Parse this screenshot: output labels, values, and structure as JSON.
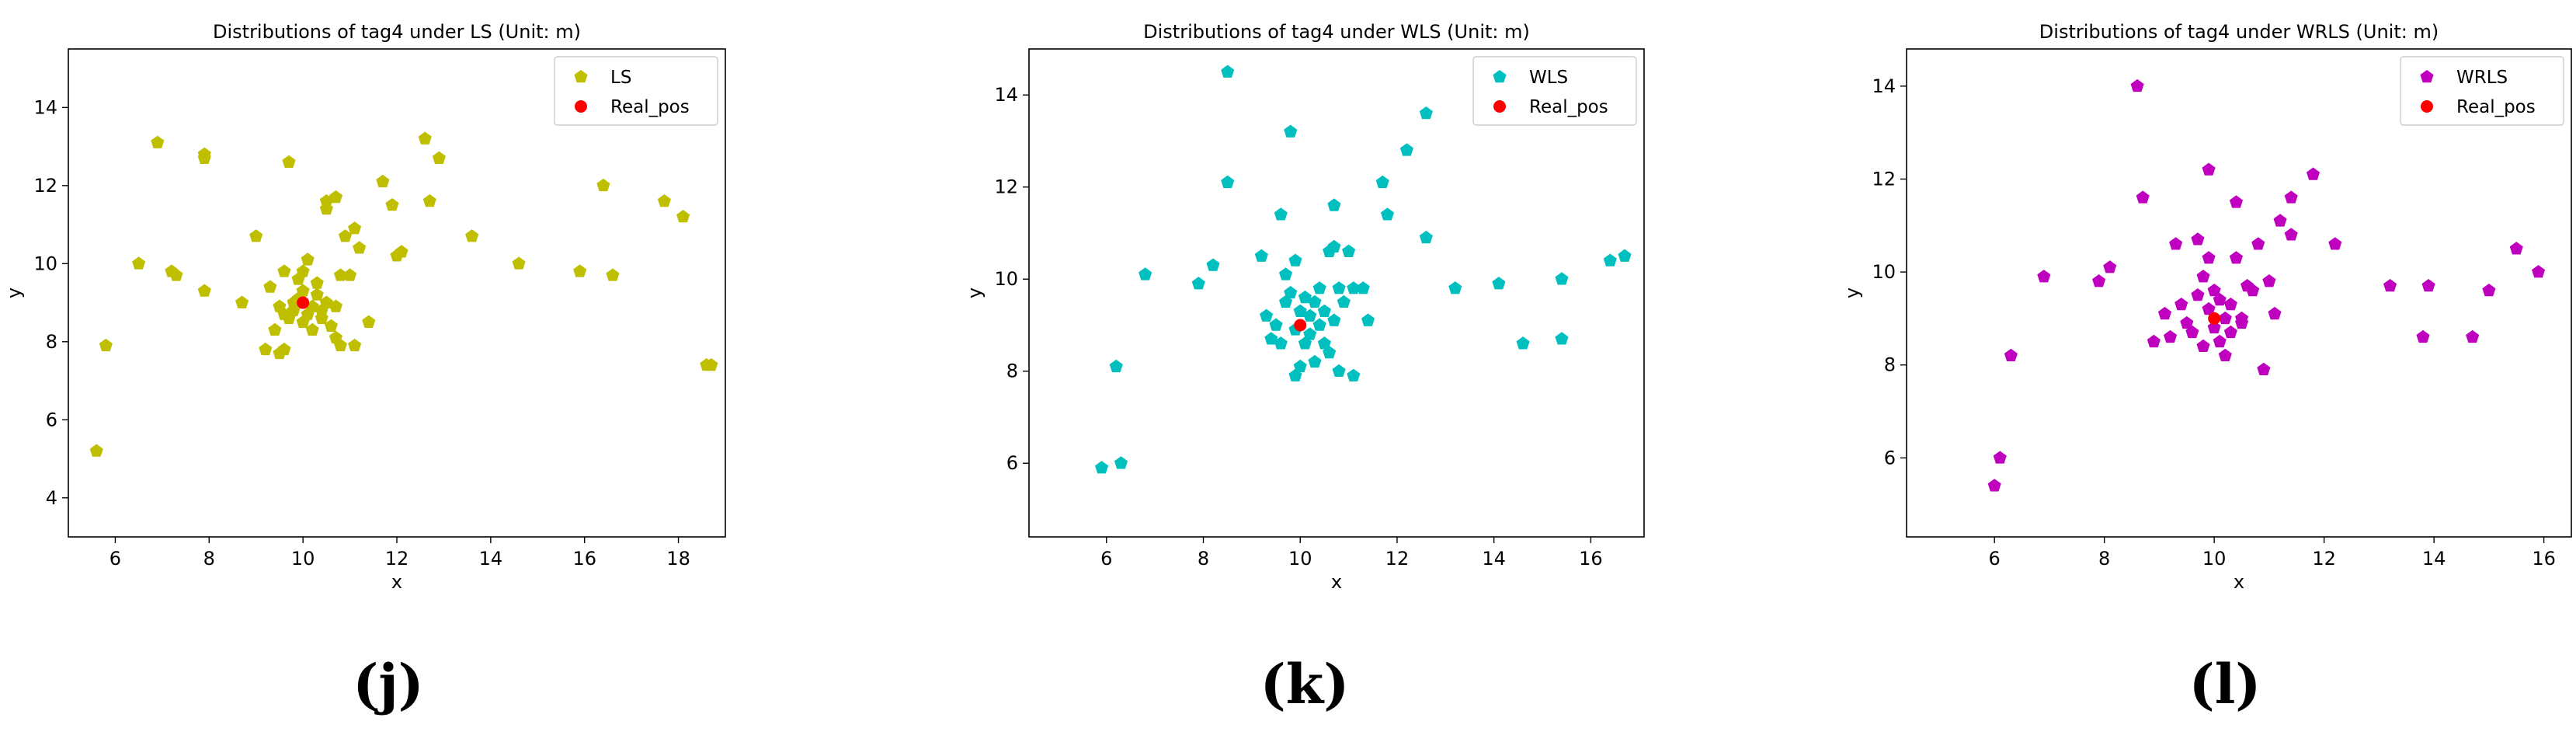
{
  "chart_data": [
    {
      "type": "scatter",
      "title": "Distributions of tag4 under LS (Unit: m)",
      "xlabel": "x",
      "ylabel": "y",
      "xlim": [
        5.0,
        19.0
      ],
      "ylim": [
        3.0,
        15.5
      ],
      "xticks": [
        6,
        8,
        10,
        12,
        14,
        16,
        18
      ],
      "yticks": [
        4,
        6,
        8,
        10,
        12,
        14
      ],
      "legend_position": "top-right",
      "caption": "(j)",
      "series": [
        {
          "name": "LS",
          "marker": "pentagon",
          "color": "#bfbf00",
          "points": [
            [
              5.6,
              5.2
            ],
            [
              5.8,
              7.9
            ],
            [
              6.5,
              10.0
            ],
            [
              6.9,
              13.1
            ],
            [
              7.2,
              9.8
            ],
            [
              7.3,
              9.7
            ],
            [
              7.9,
              12.8
            ],
            [
              7.9,
              9.3
            ],
            [
              7.9,
              12.7
            ],
            [
              8.7,
              9.0
            ],
            [
              9.0,
              10.7
            ],
            [
              9.2,
              7.8
            ],
            [
              9.3,
              9.4
            ],
            [
              9.4,
              8.3
            ],
            [
              9.5,
              7.7
            ],
            [
              9.5,
              8.9
            ],
            [
              9.6,
              8.7
            ],
            [
              9.6,
              9.8
            ],
            [
              9.6,
              7.8
            ],
            [
              9.7,
              12.6
            ],
            [
              9.7,
              8.6
            ],
            [
              9.8,
              9.0
            ],
            [
              9.8,
              8.8
            ],
            [
              9.9,
              9.1
            ],
            [
              9.9,
              9.6
            ],
            [
              10.0,
              9.3
            ],
            [
              10.0,
              8.5
            ],
            [
              10.0,
              9.8
            ],
            [
              10.1,
              8.7
            ],
            [
              10.1,
              10.1
            ],
            [
              10.2,
              8.3
            ],
            [
              10.2,
              8.9
            ],
            [
              10.3,
              9.5
            ],
            [
              10.3,
              9.2
            ],
            [
              10.4,
              8.6
            ],
            [
              10.4,
              8.8
            ],
            [
              10.5,
              9.0
            ],
            [
              10.5,
              11.4
            ],
            [
              10.5,
              11.6
            ],
            [
              10.6,
              8.4
            ],
            [
              10.7,
              8.9
            ],
            [
              10.7,
              11.7
            ],
            [
              10.7,
              8.1
            ],
            [
              10.8,
              7.9
            ],
            [
              10.8,
              9.7
            ],
            [
              10.9,
              10.7
            ],
            [
              11.0,
              9.7
            ],
            [
              11.1,
              10.9
            ],
            [
              11.1,
              7.9
            ],
            [
              11.2,
              10.4
            ],
            [
              11.4,
              8.5
            ],
            [
              11.7,
              12.1
            ],
            [
              11.9,
              11.5
            ],
            [
              12.0,
              10.2
            ],
            [
              12.1,
              10.3
            ],
            [
              12.6,
              13.2
            ],
            [
              12.7,
              11.6
            ],
            [
              12.9,
              12.7
            ],
            [
              13.6,
              10.7
            ],
            [
              14.6,
              10.0
            ],
            [
              15.9,
              9.8
            ],
            [
              16.4,
              12.0
            ],
            [
              16.6,
              9.7
            ],
            [
              17.7,
              11.6
            ],
            [
              18.1,
              11.2
            ],
            [
              18.6,
              7.4
            ],
            [
              18.7,
              7.4
            ]
          ]
        },
        {
          "name": "Real_pos",
          "marker": "circle",
          "color": "#ff0000",
          "points": [
            [
              10.0,
              9.0
            ]
          ]
        }
      ]
    },
    {
      "type": "scatter",
      "title": "Distributions of tag4 under WLS (Unit: m)",
      "xlabel": "x",
      "ylabel": "y",
      "xlim": [
        4.4,
        17.1
      ],
      "ylim": [
        4.4,
        15.0
      ],
      "xticks": [
        6,
        8,
        10,
        12,
        14,
        16
      ],
      "yticks": [
        6,
        8,
        10,
        12,
        14
      ],
      "legend_position": "top-right",
      "caption": "(k)",
      "series": [
        {
          "name": "WLS",
          "marker": "pentagon",
          "color": "#00bfbf",
          "points": [
            [
              5.9,
              5.9
            ],
            [
              6.2,
              8.1
            ],
            [
              6.3,
              6.0
            ],
            [
              6.8,
              10.1
            ],
            [
              7.9,
              9.9
            ],
            [
              8.2,
              10.3
            ],
            [
              8.5,
              14.5
            ],
            [
              8.5,
              12.1
            ],
            [
              9.2,
              10.5
            ],
            [
              9.3,
              9.2
            ],
            [
              9.4,
              8.7
            ],
            [
              9.5,
              9.0
            ],
            [
              9.6,
              11.4
            ],
            [
              9.6,
              8.6
            ],
            [
              9.7,
              9.5
            ],
            [
              9.7,
              10.1
            ],
            [
              9.8,
              13.2
            ],
            [
              9.8,
              9.7
            ],
            [
              9.9,
              7.9
            ],
            [
              9.9,
              10.4
            ],
            [
              9.9,
              8.9
            ],
            [
              10.0,
              9.3
            ],
            [
              10.0,
              8.1
            ],
            [
              10.1,
              9.6
            ],
            [
              10.1,
              8.6
            ],
            [
              10.2,
              9.2
            ],
            [
              10.2,
              8.8
            ],
            [
              10.3,
              9.5
            ],
            [
              10.3,
              8.2
            ],
            [
              10.4,
              9.0
            ],
            [
              10.4,
              9.8
            ],
            [
              10.5,
              8.6
            ],
            [
              10.5,
              9.3
            ],
            [
              10.6,
              10.6
            ],
            [
              10.6,
              8.4
            ],
            [
              10.7,
              11.6
            ],
            [
              10.7,
              9.1
            ],
            [
              10.7,
              10.7
            ],
            [
              10.8,
              8.0
            ],
            [
              10.8,
              9.8
            ],
            [
              10.9,
              9.5
            ],
            [
              11.0,
              10.6
            ],
            [
              11.1,
              7.9
            ],
            [
              11.1,
              9.8
            ],
            [
              11.3,
              9.8
            ],
            [
              11.4,
              9.1
            ],
            [
              11.7,
              12.1
            ],
            [
              11.8,
              11.4
            ],
            [
              12.2,
              12.8
            ],
            [
              12.6,
              13.6
            ],
            [
              12.6,
              10.9
            ],
            [
              13.2,
              9.8
            ],
            [
              14.1,
              9.9
            ],
            [
              14.6,
              8.6
            ],
            [
              15.4,
              8.7
            ],
            [
              15.4,
              10.0
            ],
            [
              16.4,
              10.4
            ],
            [
              16.7,
              10.5
            ]
          ]
        },
        {
          "name": "Real_pos",
          "marker": "circle",
          "color": "#ff0000",
          "points": [
            [
              10.0,
              9.0
            ]
          ]
        }
      ]
    },
    {
      "type": "scatter",
      "title": "Distributions of tag4 under WRLS (Unit: m)",
      "xlabel": "x",
      "ylabel": "y",
      "xlim": [
        4.4,
        16.5
      ],
      "ylim": [
        4.3,
        14.8
      ],
      "xticks": [
        6,
        8,
        10,
        12,
        14,
        16
      ],
      "yticks": [
        6,
        8,
        10,
        12,
        14
      ],
      "legend_position": "top-right",
      "caption": "(l)",
      "series": [
        {
          "name": "WRLS",
          "marker": "pentagon",
          "color": "#bf00bf",
          "points": [
            [
              6.0,
              5.4
            ],
            [
              6.1,
              6.0
            ],
            [
              6.3,
              8.2
            ],
            [
              6.9,
              9.9
            ],
            [
              7.9,
              9.8
            ],
            [
              8.1,
              10.1
            ],
            [
              8.6,
              14.0
            ],
            [
              8.7,
              11.6
            ],
            [
              8.9,
              8.5
            ],
            [
              9.1,
              9.1
            ],
            [
              9.2,
              8.6
            ],
            [
              9.3,
              10.6
            ],
            [
              9.4,
              9.3
            ],
            [
              9.5,
              8.9
            ],
            [
              9.6,
              8.7
            ],
            [
              9.7,
              9.5
            ],
            [
              9.7,
              10.7
            ],
            [
              9.8,
              9.9
            ],
            [
              9.8,
              8.4
            ],
            [
              9.9,
              12.2
            ],
            [
              9.9,
              9.2
            ],
            [
              9.9,
              10.3
            ],
            [
              10.0,
              8.8
            ],
            [
              10.0,
              9.6
            ],
            [
              10.1,
              8.5
            ],
            [
              10.1,
              9.4
            ],
            [
              10.2,
              9.0
            ],
            [
              10.2,
              8.2
            ],
            [
              10.3,
              9.3
            ],
            [
              10.3,
              8.7
            ],
            [
              10.4,
              11.5
            ],
            [
              10.4,
              10.3
            ],
            [
              10.5,
              9.0
            ],
            [
              10.5,
              8.9
            ],
            [
              10.6,
              9.7
            ],
            [
              10.7,
              9.6
            ],
            [
              10.8,
              10.6
            ],
            [
              10.9,
              7.9
            ],
            [
              11.0,
              9.8
            ],
            [
              11.1,
              9.1
            ],
            [
              11.2,
              11.1
            ],
            [
              11.4,
              11.6
            ],
            [
              11.4,
              10.8
            ],
            [
              11.8,
              12.1
            ],
            [
              12.2,
              10.6
            ],
            [
              13.2,
              9.7
            ],
            [
              13.8,
              8.6
            ],
            [
              13.9,
              9.7
            ],
            [
              14.7,
              8.6
            ],
            [
              15.0,
              9.6
            ],
            [
              15.5,
              10.5
            ],
            [
              15.9,
              10.0
            ]
          ]
        },
        {
          "name": "Real_pos",
          "marker": "circle",
          "color": "#ff0000",
          "points": [
            [
              10.0,
              9.0
            ]
          ]
        }
      ]
    }
  ]
}
